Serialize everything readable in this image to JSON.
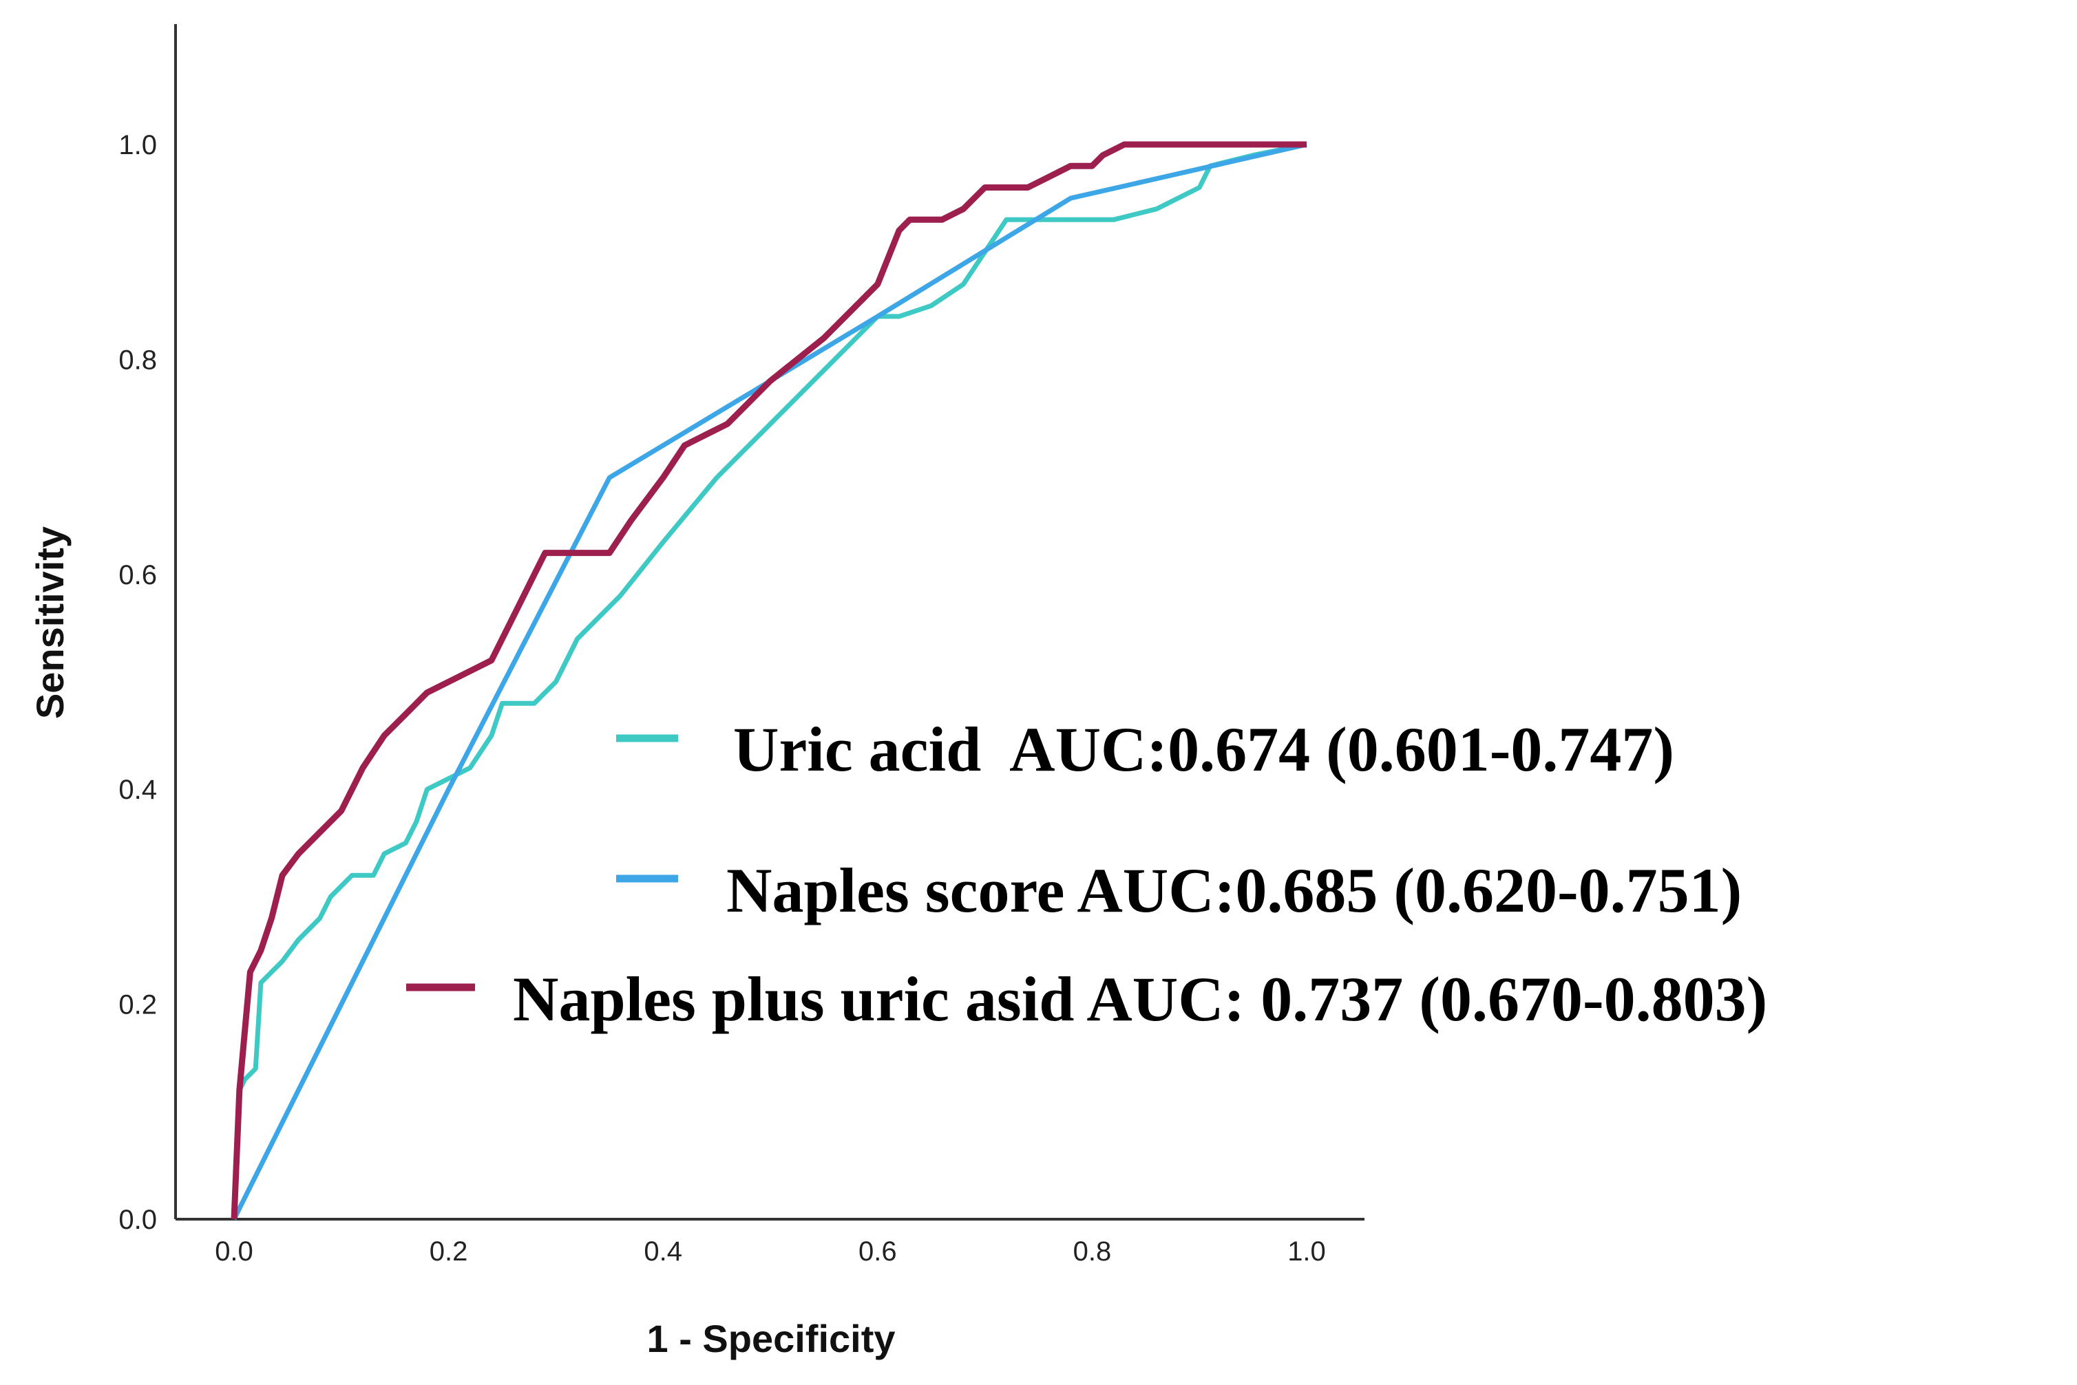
{
  "chart_data": {
    "type": "line",
    "title": "",
    "xlabel": "1 - Specificity",
    "ylabel": "Sensitivity",
    "xlim": [
      0,
      1.1
    ],
    "ylim": [
      0,
      1.0
    ],
    "x_ticks": [
      "0.0",
      "0.2",
      "0.4",
      "0.6",
      "0.8",
      "1.0"
    ],
    "y_ticks": [
      "0.0",
      "0.2",
      "0.4",
      "0.6",
      "0.8",
      "1.0"
    ],
    "grid": false,
    "legend_position": "center-right",
    "series": [
      {
        "name": "Uric acid  AUC:0.674 (0.601-0.747)",
        "color": "#3ec9c4",
        "points": [
          [
            0.0,
            0.0
          ],
          [
            0.005,
            0.12
          ],
          [
            0.01,
            0.13
          ],
          [
            0.02,
            0.14
          ],
          [
            0.025,
            0.22
          ],
          [
            0.035,
            0.23
          ],
          [
            0.045,
            0.24
          ],
          [
            0.06,
            0.26
          ],
          [
            0.08,
            0.28
          ],
          [
            0.09,
            0.3
          ],
          [
            0.11,
            0.32
          ],
          [
            0.13,
            0.32
          ],
          [
            0.14,
            0.34
          ],
          [
            0.16,
            0.35
          ],
          [
            0.17,
            0.37
          ],
          [
            0.18,
            0.4
          ],
          [
            0.2,
            0.41
          ],
          [
            0.22,
            0.42
          ],
          [
            0.24,
            0.45
          ],
          [
            0.25,
            0.48
          ],
          [
            0.28,
            0.48
          ],
          [
            0.3,
            0.5
          ],
          [
            0.32,
            0.54
          ],
          [
            0.36,
            0.58
          ],
          [
            0.4,
            0.63
          ],
          [
            0.45,
            0.69
          ],
          [
            0.5,
            0.74
          ],
          [
            0.55,
            0.79
          ],
          [
            0.6,
            0.84
          ],
          [
            0.62,
            0.84
          ],
          [
            0.65,
            0.85
          ],
          [
            0.68,
            0.87
          ],
          [
            0.72,
            0.93
          ],
          [
            0.78,
            0.93
          ],
          [
            0.82,
            0.93
          ],
          [
            0.86,
            0.94
          ],
          [
            0.9,
            0.96
          ],
          [
            0.91,
            0.98
          ],
          [
            0.95,
            0.99
          ],
          [
            1.0,
            1.0
          ]
        ]
      },
      {
        "name": "Naples score AUC:0.685 (0.620-0.751)",
        "color": "#3da6e6",
        "points": [
          [
            0.0,
            0.0
          ],
          [
            0.2,
            0.4
          ],
          [
            0.35,
            0.69
          ],
          [
            0.6,
            0.84
          ],
          [
            0.78,
            0.95
          ],
          [
            1.0,
            1.0
          ]
        ]
      },
      {
        "name": "Naples plus uric asid AUC: 0.737 (0.670-0.803)",
        "color": "#9c1f4e",
        "points": [
          [
            0.0,
            0.0
          ],
          [
            0.005,
            0.12
          ],
          [
            0.015,
            0.23
          ],
          [
            0.025,
            0.25
          ],
          [
            0.035,
            0.28
          ],
          [
            0.045,
            0.32
          ],
          [
            0.06,
            0.34
          ],
          [
            0.08,
            0.36
          ],
          [
            0.1,
            0.38
          ],
          [
            0.12,
            0.42
          ],
          [
            0.14,
            0.45
          ],
          [
            0.16,
            0.47
          ],
          [
            0.18,
            0.49
          ],
          [
            0.2,
            0.5
          ],
          [
            0.22,
            0.51
          ],
          [
            0.24,
            0.52
          ],
          [
            0.26,
            0.56
          ],
          [
            0.28,
            0.6
          ],
          [
            0.29,
            0.62
          ],
          [
            0.35,
            0.62
          ],
          [
            0.37,
            0.65
          ],
          [
            0.4,
            0.69
          ],
          [
            0.42,
            0.72
          ],
          [
            0.44,
            0.73
          ],
          [
            0.46,
            0.74
          ],
          [
            0.48,
            0.76
          ],
          [
            0.5,
            0.78
          ],
          [
            0.55,
            0.82
          ],
          [
            0.6,
            0.87
          ],
          [
            0.62,
            0.92
          ],
          [
            0.63,
            0.93
          ],
          [
            0.66,
            0.93
          ],
          [
            0.68,
            0.94
          ],
          [
            0.7,
            0.96
          ],
          [
            0.74,
            0.96
          ],
          [
            0.76,
            0.97
          ],
          [
            0.78,
            0.98
          ],
          [
            0.8,
            0.98
          ],
          [
            0.81,
            0.99
          ],
          [
            0.83,
            1.0
          ],
          [
            1.0,
            1.0
          ]
        ]
      }
    ]
  }
}
